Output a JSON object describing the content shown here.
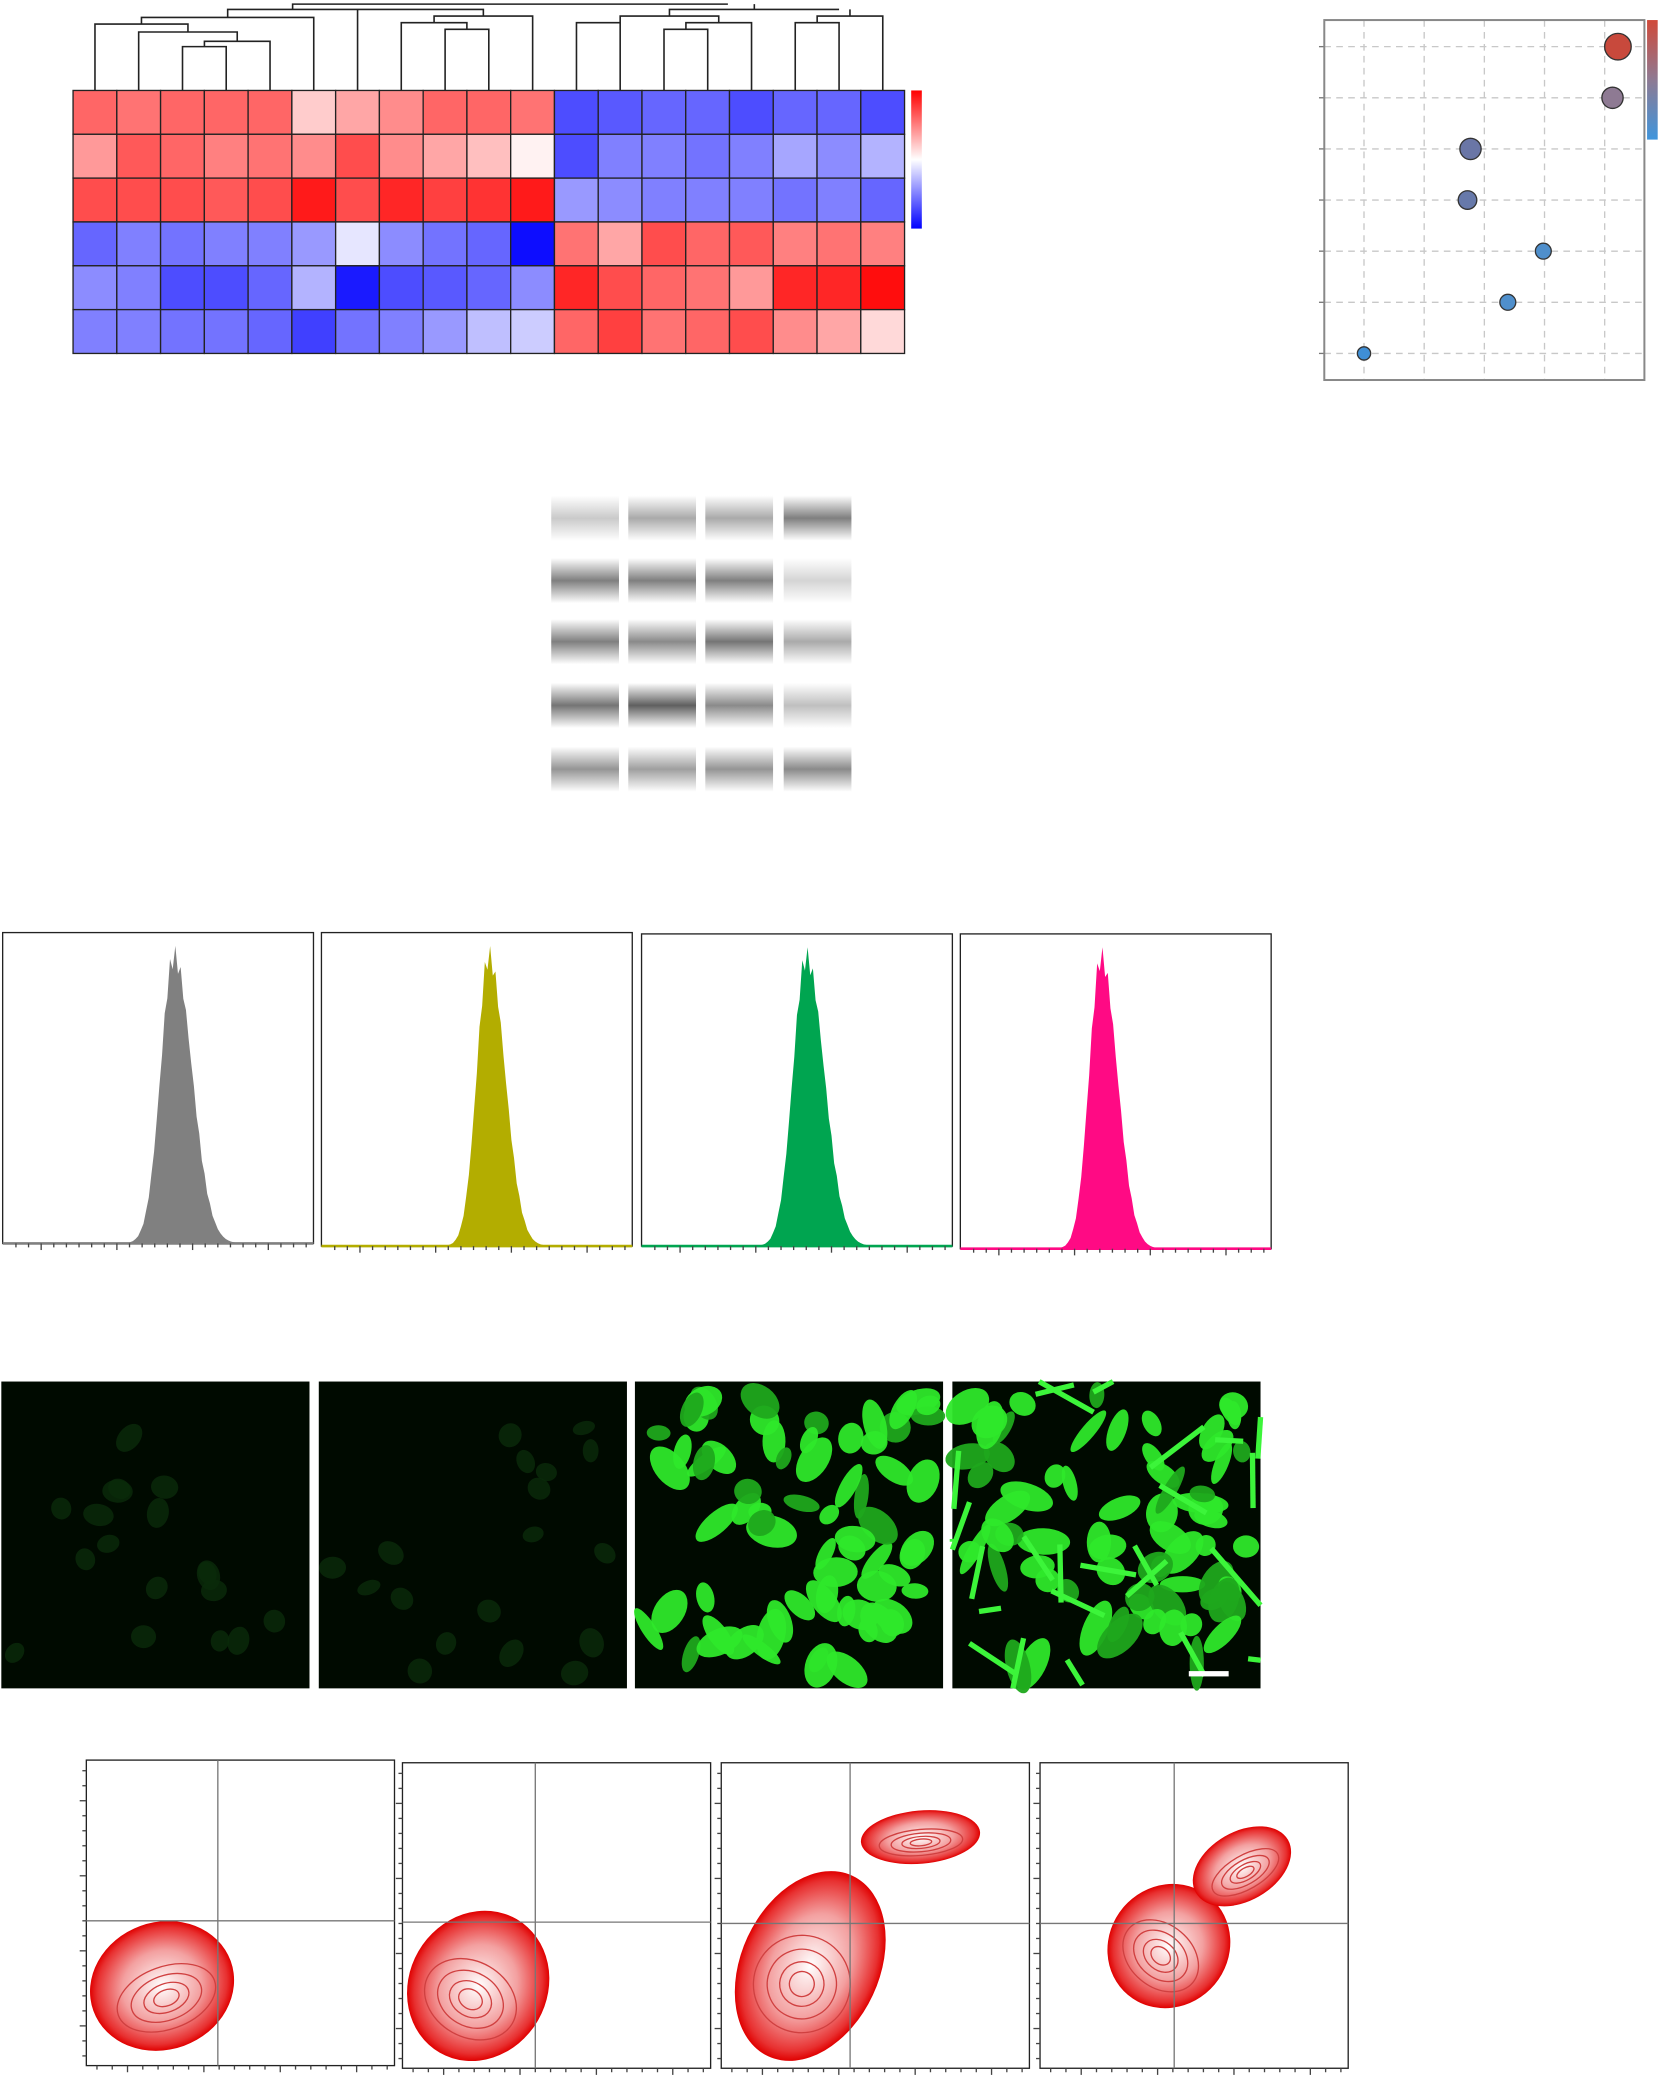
{
  "chart_data": [
    {
      "type": "heatmap",
      "values": [
        [
          0.6,
          0.55,
          0.6,
          0.6,
          0.6,
          0.2,
          0.35,
          0.45,
          0.6,
          0.6,
          0.55,
          -0.7,
          -0.65,
          -0.6,
          -0.6,
          -0.7,
          -0.6,
          -0.6,
          -0.7
        ],
        [
          0.4,
          0.65,
          0.6,
          0.5,
          0.55,
          0.45,
          0.7,
          0.45,
          0.35,
          0.25,
          0.05,
          -0.7,
          -0.5,
          -0.5,
          -0.55,
          -0.5,
          -0.35,
          -0.45,
          -0.3
        ],
        [
          0.7,
          0.7,
          0.7,
          0.65,
          0.7,
          0.9,
          0.7,
          0.85,
          0.75,
          0.8,
          0.9,
          -0.4,
          -0.45,
          -0.5,
          -0.5,
          -0.5,
          -0.55,
          -0.5,
          -0.6
        ],
        [
          -0.6,
          -0.5,
          -0.55,
          -0.5,
          -0.5,
          -0.4,
          -0.1,
          -0.45,
          -0.55,
          -0.6,
          -0.95,
          0.55,
          0.35,
          0.7,
          0.6,
          0.65,
          0.5,
          0.55,
          0.5
        ],
        [
          -0.45,
          -0.5,
          -0.7,
          -0.7,
          -0.6,
          -0.3,
          -0.9,
          -0.7,
          -0.65,
          -0.6,
          -0.45,
          0.85,
          0.7,
          0.6,
          0.55,
          0.4,
          0.85,
          0.85,
          0.95
        ],
        [
          -0.5,
          -0.5,
          -0.55,
          -0.55,
          -0.6,
          -0.75,
          -0.55,
          -0.5,
          -0.4,
          -0.25,
          -0.2,
          0.6,
          0.75,
          0.55,
          0.6,
          0.7,
          0.45,
          0.35,
          0.15
        ]
      ],
      "zlim": [
        -1,
        1
      ],
      "colorscale": [
        "#0000ff",
        "#ffffff",
        "#ff0000"
      ]
    },
    {
      "type": "scatter",
      "x": [
        5.22,
        5.13,
        2.77,
        2.72,
        3.98,
        3.39,
        1
      ],
      "values": [
        7,
        6,
        5,
        4,
        3,
        2,
        1
      ],
      "sizes": [
        10,
        8,
        8,
        7,
        6,
        6,
        5
      ],
      "colors": [
        "#c8493c",
        "#8e7a93",
        "#6a76a6",
        "#6779aa",
        "#4f8fcc",
        "#4f8fcc",
        "#3f8fd6"
      ],
      "xlim": [
        0.34,
        5.66
      ],
      "ylim": [
        0.48,
        7.52
      ],
      "xticks": [
        1,
        2,
        3,
        4,
        5
      ],
      "yticks": [
        1,
        2,
        3,
        4,
        5,
        6,
        7
      ],
      "grid": true
    }
  ]
}
